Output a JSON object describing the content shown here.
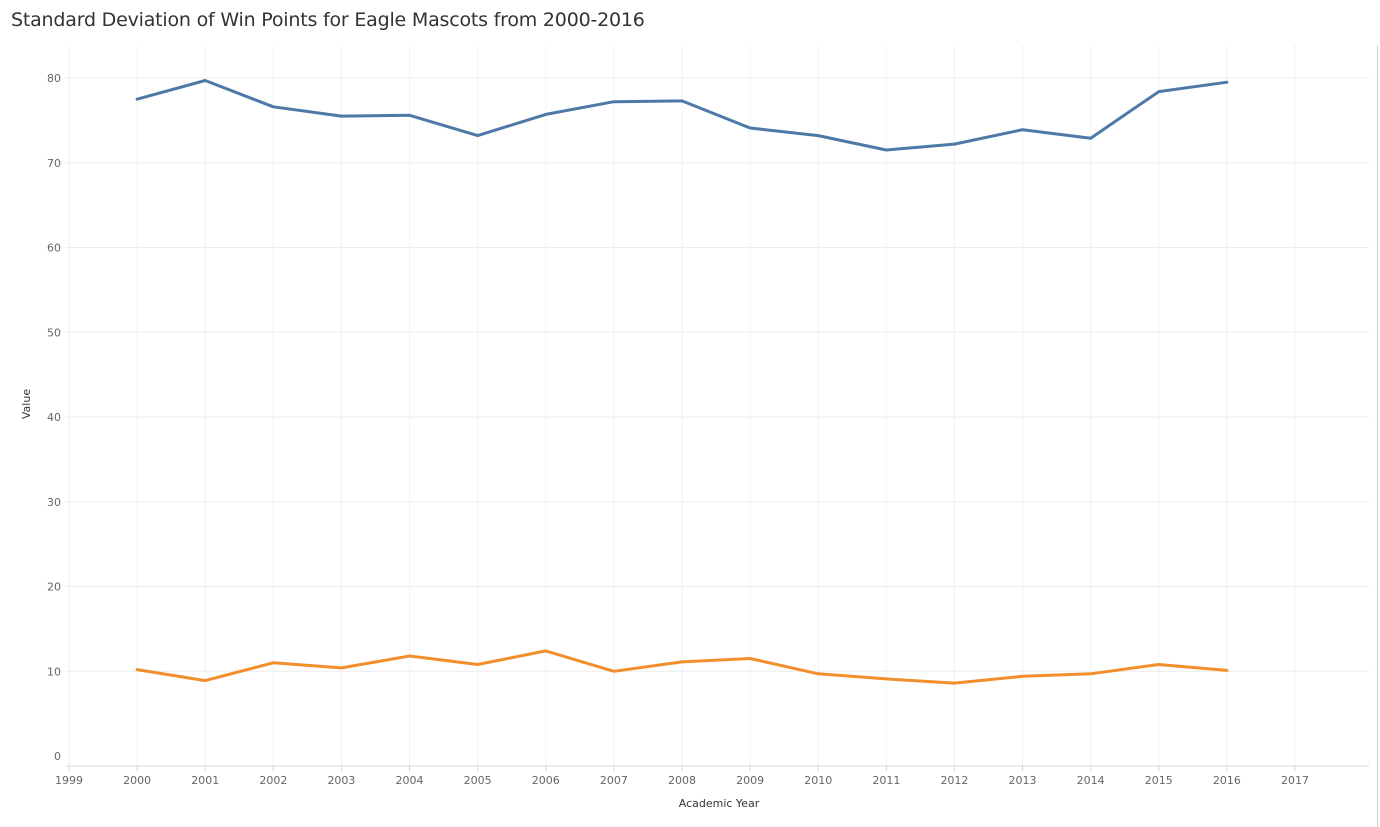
{
  "chart_data": {
    "type": "line",
    "title": "Standard Deviation of Win Points for Eagle Mascots from 2000-2016",
    "xlabel": "Academic Year",
    "ylabel": "Value",
    "xlim": [
      1999,
      2017
    ],
    "ylim": [
      0,
      80
    ],
    "x_ticks": [
      1999,
      2000,
      2001,
      2002,
      2003,
      2004,
      2005,
      2006,
      2007,
      2008,
      2009,
      2010,
      2011,
      2012,
      2013,
      2014,
      2015,
      2016,
      2017
    ],
    "y_ticks": [
      0,
      10,
      20,
      30,
      40,
      50,
      60,
      70,
      80
    ],
    "grid": true,
    "x": [
      2000,
      2001,
      2002,
      2003,
      2004,
      2005,
      2006,
      2007,
      2008,
      2009,
      2010,
      2011,
      2012,
      2013,
      2014,
      2015,
      2016
    ],
    "series": [
      {
        "color": "#4e79a7",
        "values": [
          77.5,
          79.7,
          76.6,
          75.5,
          75.6,
          73.2,
          75.7,
          77.2,
          77.3,
          74.1,
          73.2,
          71.5,
          72.2,
          73.9,
          72.9,
          78.4,
          79.5
        ]
      },
      {
        "color": "#f28e2b",
        "values": [
          10.2,
          8.9,
          11.0,
          10.4,
          11.8,
          10.8,
          12.4,
          10.0,
          11.1,
          11.5,
          9.7,
          9.1,
          8.6,
          9.4,
          9.7,
          10.8,
          10.1
        ]
      }
    ]
  }
}
